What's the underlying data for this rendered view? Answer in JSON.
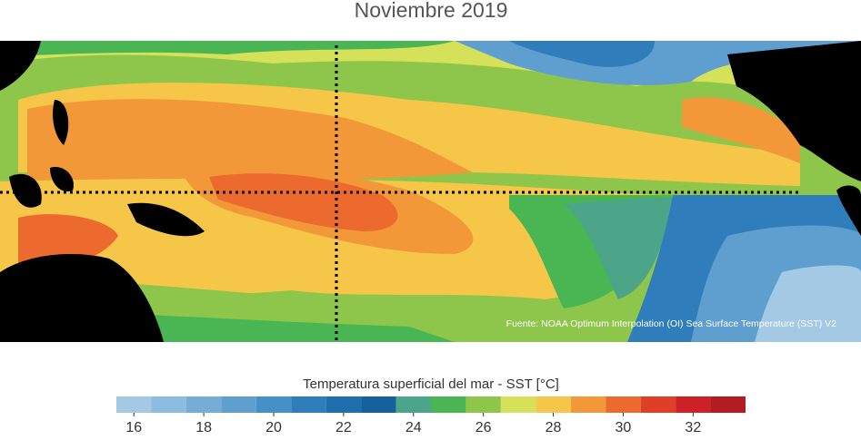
{
  "title": "Noviembre 2019",
  "source": "Fuente: NOAA Optimum Interpolation (OI) Sea Surface Temperature (SST) V2",
  "colorbar": {
    "label": "Temperatura superficial del mar - SST  [°C]",
    "bins": [
      15.5,
      16.5,
      17.5,
      18.5,
      19.5,
      20.5,
      21.5,
      22.5,
      23.5,
      24.5,
      25.5,
      26.5,
      27.5,
      28.5,
      29.5,
      30.5,
      31.5,
      32.5,
      33.5
    ],
    "colors": [
      "#a3c9e5",
      "#8cbce0",
      "#74aed8",
      "#5e9fd0",
      "#478fc7",
      "#2f7dbb",
      "#1f6eae",
      "#14619d",
      "#4ca489",
      "#49b653",
      "#8ec64b",
      "#d6e15a",
      "#f6c649",
      "#f39838",
      "#ec6a2d",
      "#df3f27",
      "#cd2027",
      "#b31c23"
    ],
    "ticks": [
      16,
      18,
      20,
      22,
      24,
      26,
      28,
      30,
      32
    ]
  }
}
